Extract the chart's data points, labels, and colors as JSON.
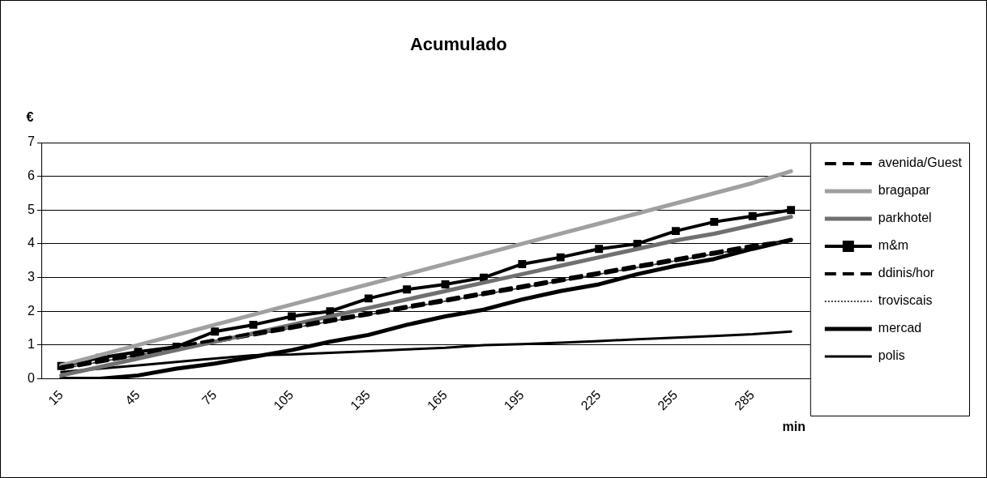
{
  "chart_data": {
    "type": "line",
    "title": "Acumulado",
    "xlabel": "min",
    "ylabel": "€",
    "categories": [
      "15",
      null,
      "45",
      null,
      "75",
      null,
      "105",
      null,
      "135",
      null,
      "165",
      null,
      "195",
      null,
      "225",
      null,
      "255",
      null,
      "285",
      null
    ],
    "ylim": [
      0,
      7
    ],
    "yticks": [
      0,
      1,
      2,
      3,
      4,
      5,
      6,
      7
    ],
    "grid": "y",
    "legend": "right",
    "series": [
      {
        "name": "avenida/Guest",
        "color": "#000000",
        "line_style": "dashed",
        "marker": "none",
        "values": [
          0.35,
          0.55,
          0.75,
          0.95,
          1.15,
          1.35,
          1.55,
          1.75,
          1.95,
          2.15,
          2.35,
          2.55,
          2.75,
          2.95,
          3.15,
          3.35,
          3.55,
          3.75,
          3.95,
          4.1
        ]
      },
      {
        "name": "bragapar",
        "color": "#a0a0a0",
        "line_style": "solid",
        "marker": "none",
        "values": [
          0.4,
          0.7,
          1.0,
          1.3,
          1.6,
          1.9,
          2.2,
          2.5,
          2.8,
          3.1,
          3.4,
          3.7,
          4.0,
          4.3,
          4.6,
          4.9,
          5.2,
          5.5,
          5.8,
          6.15
        ]
      },
      {
        "name": "parkhotel",
        "color": "#707070",
        "line_style": "solid",
        "marker": "none",
        "values": [
          0.1,
          0.35,
          0.6,
          0.85,
          1.1,
          1.35,
          1.6,
          1.85,
          2.1,
          2.35,
          2.6,
          2.85,
          3.1,
          3.35,
          3.6,
          3.85,
          4.1,
          4.3,
          4.55,
          4.8
        ]
      },
      {
        "name": "m&m",
        "color": "#000000",
        "line_style": "solid",
        "marker": "square",
        "values": [
          0.38,
          0.62,
          0.8,
          0.95,
          1.4,
          1.6,
          1.85,
          2.0,
          2.38,
          2.65,
          2.8,
          3.0,
          3.4,
          3.6,
          3.85,
          4.0,
          4.38,
          4.65,
          4.82,
          5.0
        ]
      },
      {
        "name": "ddinis/hor",
        "color": "#000000",
        "line_style": "dashed",
        "marker": "none",
        "values": [
          0.3,
          0.5,
          0.7,
          0.9,
          1.1,
          1.3,
          1.5,
          1.7,
          1.9,
          2.1,
          2.3,
          2.5,
          2.7,
          2.9,
          3.1,
          3.3,
          3.5,
          3.7,
          3.9,
          4.1
        ]
      },
      {
        "name": "troviscais",
        "color": "#404040",
        "line_style": "dotted",
        "marker": "none",
        "values": [
          0.3,
          0.5,
          0.7,
          0.9,
          1.1,
          1.3,
          1.5,
          1.7,
          1.9,
          2.1,
          2.3,
          2.5,
          2.7,
          2.9,
          3.1,
          3.3,
          3.5,
          3.7,
          3.9,
          4.1
        ]
      },
      {
        "name": "mercad",
        "color": "#000000",
        "line_style": "solid",
        "marker": "none",
        "values": [
          0,
          0,
          0.1,
          0.3,
          0.45,
          0.65,
          0.85,
          1.1,
          1.3,
          1.6,
          1.85,
          2.05,
          2.35,
          2.6,
          2.8,
          3.1,
          3.35,
          3.55,
          3.85,
          4.12
        ]
      },
      {
        "name": "polis",
        "color": "#000000",
        "line_style": "solid",
        "marker": "none",
        "values": [
          0.2,
          0.3,
          0.4,
          0.5,
          0.6,
          0.7,
          0.72,
          0.77,
          0.82,
          0.87,
          0.92,
          1.0,
          1.03,
          1.07,
          1.12,
          1.17,
          1.22,
          1.27,
          1.32,
          1.4
        ]
      }
    ]
  }
}
